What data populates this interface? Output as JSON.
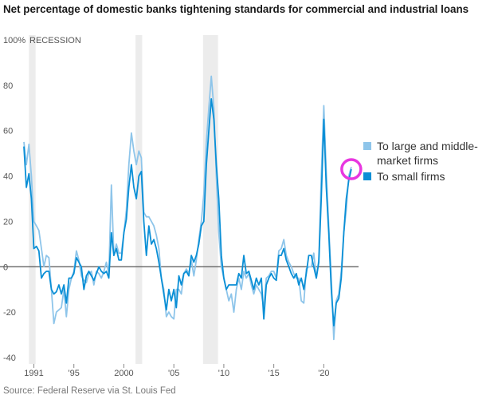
{
  "chart_data": {
    "type": "line",
    "title": "Net percentage of domestic banks tightening standards for commercial and industrial loans",
    "source": "Source: Federal Reserve via St. Louis Fed",
    "recession_label": "RECESSION",
    "ylim": [
      -40,
      100
    ],
    "xlim": [
      1990.0,
      2023.0
    ],
    "y_ticks": [
      100,
      80,
      60,
      40,
      20,
      0,
      -20,
      -40
    ],
    "y_tick_labels": [
      "100%",
      "80",
      "60",
      "40",
      "20",
      "0",
      "-20",
      "-40"
    ],
    "x_ticks": [
      1991,
      1995,
      2000,
      2005,
      2010,
      2015,
      2020
    ],
    "x_tick_labels": [
      "1991",
      "'95",
      "2000",
      "'05",
      "'10",
      "'15",
      "'20"
    ],
    "recessions": [
      [
        1990.5,
        1991.17
      ],
      [
        2001.17,
        2001.83
      ],
      [
        2007.92,
        2009.42
      ]
    ],
    "colors": {
      "large": "#8ec5ea",
      "small": "#0a8fd6",
      "highlight": "#e837e0",
      "recession": "#ececec",
      "zero": "#555555"
    },
    "series": [
      {
        "name": "To large and middle-market firms",
        "key": "large",
        "points": [
          [
            1990.0,
            55
          ],
          [
            1990.25,
            45
          ],
          [
            1990.5,
            54
          ],
          [
            1990.75,
            40
          ],
          [
            1991.0,
            20
          ],
          [
            1991.25,
            18
          ],
          [
            1991.5,
            16
          ],
          [
            1991.75,
            8
          ],
          [
            1992.0,
            0
          ],
          [
            1992.25,
            5
          ],
          [
            1992.5,
            4
          ],
          [
            1992.75,
            -10
          ],
          [
            1993.0,
            -25
          ],
          [
            1993.25,
            -20
          ],
          [
            1993.5,
            -19
          ],
          [
            1993.75,
            -18
          ],
          [
            1994.0,
            -10
          ],
          [
            1994.25,
            -22
          ],
          [
            1994.5,
            -10
          ],
          [
            1994.75,
            -5
          ],
          [
            1995.0,
            -2
          ],
          [
            1995.25,
            7
          ],
          [
            1995.5,
            3
          ],
          [
            1995.75,
            -4
          ],
          [
            1996.0,
            -6
          ],
          [
            1996.25,
            -7
          ],
          [
            1996.5,
            -3
          ],
          [
            1996.75,
            -2
          ],
          [
            1997.0,
            -8
          ],
          [
            1997.25,
            -2
          ],
          [
            1997.5,
            -3
          ],
          [
            1997.75,
            -5
          ],
          [
            1998.0,
            -2
          ],
          [
            1998.25,
            2
          ],
          [
            1998.5,
            -3
          ],
          [
            1998.75,
            36
          ],
          [
            1999.0,
            5
          ],
          [
            1999.25,
            10
          ],
          [
            1999.5,
            6
          ],
          [
            1999.75,
            6
          ],
          [
            2000.0,
            15
          ],
          [
            2000.25,
            25
          ],
          [
            2000.5,
            45
          ],
          [
            2000.75,
            59
          ],
          [
            2001.0,
            51
          ],
          [
            2001.25,
            45
          ],
          [
            2001.5,
            51
          ],
          [
            2001.75,
            48
          ],
          [
            2002.0,
            24
          ],
          [
            2002.25,
            22
          ],
          [
            2002.5,
            22
          ],
          [
            2002.75,
            20
          ],
          [
            2003.0,
            18
          ],
          [
            2003.25,
            14
          ],
          [
            2003.5,
            8
          ],
          [
            2003.75,
            -5
          ],
          [
            2004.0,
            -10
          ],
          [
            2004.25,
            -22
          ],
          [
            2004.5,
            -20
          ],
          [
            2004.75,
            -22
          ],
          [
            2005.0,
            -23
          ],
          [
            2005.25,
            -10
          ],
          [
            2005.5,
            -10
          ],
          [
            2005.75,
            -12
          ],
          [
            2006.0,
            -3
          ],
          [
            2006.25,
            -1
          ],
          [
            2006.5,
            -3
          ],
          [
            2006.75,
            3
          ],
          [
            2007.0,
            -4
          ],
          [
            2007.25,
            3
          ],
          [
            2007.5,
            12
          ],
          [
            2007.75,
            20
          ],
          [
            2008.0,
            32
          ],
          [
            2008.25,
            55
          ],
          [
            2008.5,
            70
          ],
          [
            2008.75,
            84
          ],
          [
            2009.0,
            70
          ],
          [
            2009.25,
            40
          ],
          [
            2009.5,
            15
          ],
          [
            2009.75,
            0
          ],
          [
            2010.0,
            -5
          ],
          [
            2010.25,
            -10
          ],
          [
            2010.5,
            -15
          ],
          [
            2010.75,
            -12
          ],
          [
            2011.0,
            -20
          ],
          [
            2011.25,
            -10
          ],
          [
            2011.5,
            -5
          ],
          [
            2011.75,
            -10
          ],
          [
            2012.0,
            -2
          ],
          [
            2012.25,
            -5
          ],
          [
            2012.5,
            -3
          ],
          [
            2012.75,
            -8
          ],
          [
            2013.0,
            -12
          ],
          [
            2013.25,
            -8
          ],
          [
            2013.5,
            -10
          ],
          [
            2013.75,
            -12
          ],
          [
            2014.0,
            -18
          ],
          [
            2014.25,
            -5
          ],
          [
            2014.5,
            -4
          ],
          [
            2014.75,
            -2
          ],
          [
            2015.0,
            -2
          ],
          [
            2015.25,
            -5
          ],
          [
            2015.5,
            7
          ],
          [
            2015.75,
            8
          ],
          [
            2016.0,
            12
          ],
          [
            2016.25,
            5
          ],
          [
            2016.5,
            2
          ],
          [
            2016.75,
            0
          ],
          [
            2017.0,
            -3
          ],
          [
            2017.25,
            -5
          ],
          [
            2017.5,
            -5
          ],
          [
            2017.75,
            -15
          ],
          [
            2018.0,
            -16
          ],
          [
            2018.25,
            -1
          ],
          [
            2018.5,
            0
          ],
          [
            2018.75,
            0
          ],
          [
            2019.0,
            6
          ],
          [
            2019.25,
            -5
          ],
          [
            2019.5,
            3
          ],
          [
            2019.75,
            40
          ],
          [
            2020.0,
            71
          ],
          [
            2020.25,
            42
          ],
          [
            2020.5,
            18
          ],
          [
            2020.75,
            -5
          ],
          [
            2021.0,
            -32
          ],
          [
            2021.25,
            -15
          ],
          [
            2021.5,
            -12
          ],
          [
            2021.75,
            -2
          ],
          [
            2022.0,
            15
          ],
          [
            2022.25,
            25
          ],
          [
            2022.5,
            40
          ],
          [
            2022.75,
            44
          ]
        ]
      },
      {
        "name": "To small firms",
        "key": "small",
        "points": [
          [
            1990.0,
            53
          ],
          [
            1990.25,
            35
          ],
          [
            1990.5,
            41
          ],
          [
            1990.75,
            30
          ],
          [
            1991.0,
            8
          ],
          [
            1991.25,
            9
          ],
          [
            1991.5,
            7
          ],
          [
            1991.75,
            -5
          ],
          [
            1992.0,
            -3
          ],
          [
            1992.25,
            -2
          ],
          [
            1992.5,
            -2
          ],
          [
            1992.75,
            -10
          ],
          [
            1993.0,
            -12
          ],
          [
            1993.25,
            -11
          ],
          [
            1993.5,
            -8
          ],
          [
            1993.75,
            -12
          ],
          [
            1994.0,
            -8
          ],
          [
            1994.25,
            -16
          ],
          [
            1994.5,
            -5
          ],
          [
            1994.75,
            -5
          ],
          [
            1995.0,
            -3
          ],
          [
            1995.25,
            4
          ],
          [
            1995.5,
            2
          ],
          [
            1995.75,
            0
          ],
          [
            1996.0,
            -10
          ],
          [
            1996.25,
            -4
          ],
          [
            1996.5,
            -2
          ],
          [
            1996.75,
            -4
          ],
          [
            1997.0,
            -6
          ],
          [
            1997.25,
            -3
          ],
          [
            1997.5,
            0
          ],
          [
            1997.75,
            -2
          ],
          [
            1998.0,
            -3
          ],
          [
            1998.25,
            -2
          ],
          [
            1998.5,
            -5
          ],
          [
            1998.75,
            15
          ],
          [
            1999.0,
            5
          ],
          [
            1999.25,
            8
          ],
          [
            1999.5,
            3
          ],
          [
            1999.75,
            3
          ],
          [
            2000.0,
            15
          ],
          [
            2000.25,
            21
          ],
          [
            2000.5,
            35
          ],
          [
            2000.75,
            45
          ],
          [
            2001.0,
            35
          ],
          [
            2001.25,
            30
          ],
          [
            2001.5,
            40
          ],
          [
            2001.75,
            42
          ],
          [
            2002.0,
            20
          ],
          [
            2002.25,
            5
          ],
          [
            2002.5,
            18
          ],
          [
            2002.75,
            10
          ],
          [
            2003.0,
            12
          ],
          [
            2003.25,
            8
          ],
          [
            2003.5,
            2
          ],
          [
            2003.75,
            -5
          ],
          [
            2004.0,
            -12
          ],
          [
            2004.25,
            -19
          ],
          [
            2004.5,
            -10
          ],
          [
            2004.75,
            -15
          ],
          [
            2005.0,
            -10
          ],
          [
            2005.25,
            -18
          ],
          [
            2005.5,
            -4
          ],
          [
            2005.75,
            -8
          ],
          [
            2006.0,
            -3
          ],
          [
            2006.25,
            -2
          ],
          [
            2006.5,
            -4
          ],
          [
            2006.75,
            5
          ],
          [
            2007.0,
            2
          ],
          [
            2007.25,
            5
          ],
          [
            2007.5,
            10
          ],
          [
            2007.75,
            18
          ],
          [
            2008.0,
            20
          ],
          [
            2008.25,
            45
          ],
          [
            2008.5,
            60
          ],
          [
            2008.75,
            74
          ],
          [
            2009.0,
            65
          ],
          [
            2009.25,
            45
          ],
          [
            2009.5,
            30
          ],
          [
            2009.75,
            5
          ],
          [
            2010.0,
            -5
          ],
          [
            2010.25,
            -10
          ],
          [
            2010.5,
            -8
          ],
          [
            2010.75,
            -8
          ],
          [
            2011.0,
            -8
          ],
          [
            2011.25,
            -8
          ],
          [
            2011.5,
            -3
          ],
          [
            2011.75,
            -5
          ],
          [
            2012.0,
            5
          ],
          [
            2012.25,
            -3
          ],
          [
            2012.5,
            -2
          ],
          [
            2012.75,
            -6
          ],
          [
            2013.0,
            -10
          ],
          [
            2013.25,
            -5
          ],
          [
            2013.5,
            -8
          ],
          [
            2013.75,
            -5
          ],
          [
            2014.0,
            -23
          ],
          [
            2014.25,
            -8
          ],
          [
            2014.5,
            -5
          ],
          [
            2014.75,
            -3
          ],
          [
            2015.0,
            -5
          ],
          [
            2015.25,
            -6
          ],
          [
            2015.5,
            5
          ],
          [
            2015.75,
            5
          ],
          [
            2016.0,
            8
          ],
          [
            2016.25,
            3
          ],
          [
            2016.5,
            0
          ],
          [
            2016.75,
            -3
          ],
          [
            2017.0,
            -5
          ],
          [
            2017.25,
            -3
          ],
          [
            2017.5,
            -8
          ],
          [
            2017.75,
            -5
          ],
          [
            2018.0,
            -10
          ],
          [
            2018.25,
            -3
          ],
          [
            2018.5,
            5
          ],
          [
            2018.75,
            5
          ],
          [
            2019.0,
            0
          ],
          [
            2019.25,
            -5
          ],
          [
            2019.5,
            2
          ],
          [
            2019.75,
            30
          ],
          [
            2020.0,
            65
          ],
          [
            2020.25,
            35
          ],
          [
            2020.5,
            15
          ],
          [
            2020.75,
            -10
          ],
          [
            2021.0,
            -26
          ],
          [
            2021.25,
            -16
          ],
          [
            2021.5,
            -14
          ],
          [
            2021.75,
            -5
          ],
          [
            2022.0,
            15
          ],
          [
            2022.25,
            30
          ],
          [
            2022.5,
            38
          ],
          [
            2022.75,
            43
          ]
        ]
      }
    ],
    "highlight": {
      "x": 2022.75,
      "y": 43,
      "shape": "circle"
    }
  }
}
